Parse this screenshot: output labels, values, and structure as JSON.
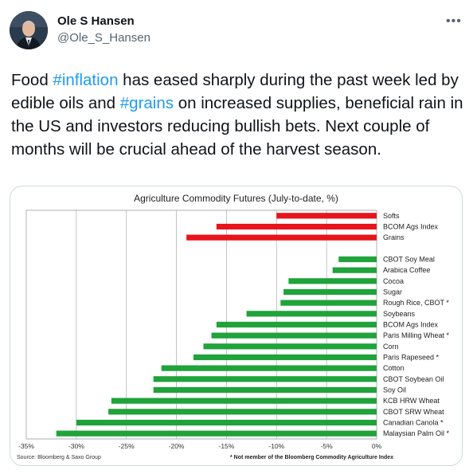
{
  "author": {
    "name": "Ole S Hansen",
    "handle": "@Ole_S_Hansen",
    "more_icon": "more-horizontal-icon"
  },
  "tweet": {
    "text_parts": [
      {
        "text": "Food ",
        "hashtag": false
      },
      {
        "text": "#inflation",
        "hashtag": true
      },
      {
        "text": " has eased sharply during the past week led by edible oils and ",
        "hashtag": false
      },
      {
        "text": "#grains",
        "hashtag": true
      },
      {
        "text": " on increased supplies, beneficial rain in the US and investors reducing bullish bets. Next couple of months will be crucial ahead of the harvest season.",
        "hashtag": false
      }
    ]
  },
  "colors": {
    "hashtag": "#1d9bf0",
    "red_bar": "#e8141c",
    "green_bar": "#1fa33a"
  },
  "chart_data": {
    "type": "bar",
    "title": "Agriculture Commodity Futures (July-to-date, %)",
    "orientation": "horizontal",
    "xlim": [
      -35,
      0
    ],
    "xticks": [
      "-35%",
      "-30%",
      "-25%",
      "-20%",
      "-15%",
      "-10%",
      "-5%",
      "0%"
    ],
    "grid": "vertical",
    "categories": [
      {
        "label": "Softs",
        "value": -10,
        "color": "red"
      },
      {
        "label": "BCOM Ags Index",
        "value": -16,
        "color": "red"
      },
      {
        "label": "Grains",
        "value": -19,
        "color": "red"
      },
      {
        "label": "",
        "value": null,
        "color": "none"
      },
      {
        "label": "CBOT Soy Meal",
        "value": -3.8,
        "color": "green"
      },
      {
        "label": "Arabica Coffee",
        "value": -4.4,
        "color": "green"
      },
      {
        "label": "Cocoa",
        "value": -8.8,
        "color": "green"
      },
      {
        "label": "Sugar",
        "value": -9.3,
        "color": "green"
      },
      {
        "label": "Rough Rice, CBOT *",
        "value": -9.6,
        "color": "green"
      },
      {
        "label": "Soybeans",
        "value": -13,
        "color": "green"
      },
      {
        "label": "BCOM Ags Index",
        "value": -16,
        "color": "green"
      },
      {
        "label": "Paris Milling Wheat *",
        "value": -16.5,
        "color": "green"
      },
      {
        "label": "Corn",
        "value": -17.3,
        "color": "green"
      },
      {
        "label": "Paris Rapeseed *",
        "value": -18.3,
        "color": "green"
      },
      {
        "label": "Cotton",
        "value": -21.5,
        "color": "green"
      },
      {
        "label": "CBOT Soybean Oil",
        "value": -22.3,
        "color": "green"
      },
      {
        "label": "Soy Oil",
        "value": -22.3,
        "color": "green"
      },
      {
        "label": "KCB HRW Wheat",
        "value": -26.5,
        "color": "green"
      },
      {
        "label": "CBOT SRW Wheat",
        "value": -26.8,
        "color": "green"
      },
      {
        "label": "Canadian Canola *",
        "value": -30,
        "color": "green"
      },
      {
        "label": "Malaysian Palm Oil *",
        "value": -32,
        "color": "green"
      }
    ],
    "source": "Source: Bloomberg & Saxo Group",
    "note": "* Not member of the Bloomberg Commodity Agriculture Index"
  }
}
